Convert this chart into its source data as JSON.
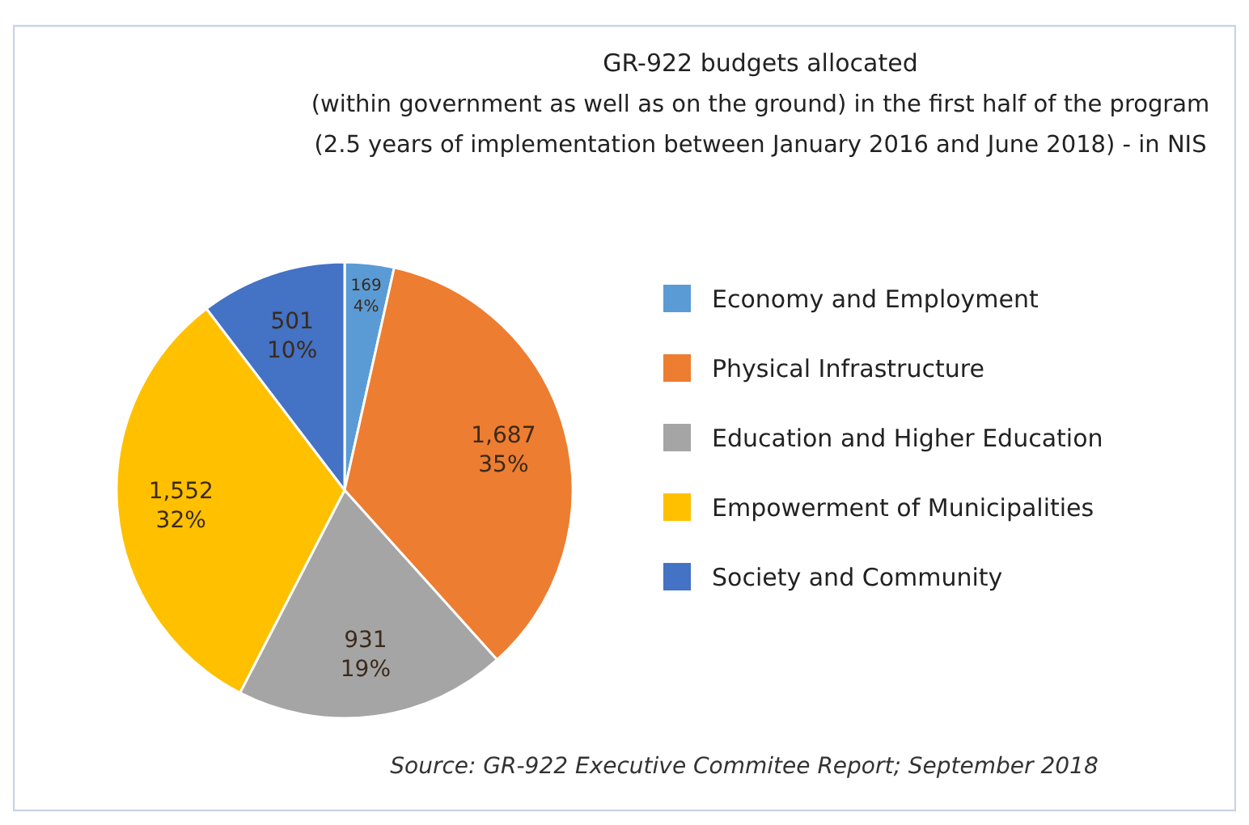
{
  "chart_data": {
    "type": "pie",
    "title": "GR-922 budgets allocated\n(within government as well as on the ground) in the first half of the program\n(2.5 years of implementation between January 2016 and June 2018) - in NIS",
    "categories": [
      "Economy and Employment",
      "Physical Infrastructure",
      "Education and Higher Education",
      "Empowerment of Municipalities",
      "Society and Community"
    ],
    "values": [
      169,
      1687,
      931,
      1552,
      501
    ],
    "value_labels": [
      "169\n4%",
      "1,687\n35%",
      "931\n19%",
      "1,552\n32%",
      "501\n10%"
    ],
    "colors": [
      "#5b9bd5",
      "#ed7d31",
      "#a5a5a5",
      "#ffc000",
      "#4472c4"
    ],
    "legend": "right",
    "annotations": [
      "Source: GR-922 Executive Commitee Report; September 2018"
    ]
  }
}
